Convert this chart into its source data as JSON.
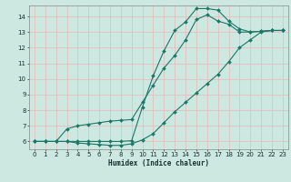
{
  "title": "",
  "xlabel": "Humidex (Indice chaleur)",
  "bg_color": "#cce8e0",
  "line_color": "#1a7868",
  "grid_color": "#f0f0f0",
  "xlim": [
    -0.5,
    23.5
  ],
  "ylim": [
    5.5,
    14.7
  ],
  "xticks": [
    0,
    1,
    2,
    3,
    4,
    5,
    6,
    7,
    8,
    9,
    10,
    11,
    12,
    13,
    14,
    15,
    16,
    17,
    18,
    19,
    20,
    21,
    22,
    23
  ],
  "yticks": [
    6,
    7,
    8,
    9,
    10,
    11,
    12,
    13,
    14
  ],
  "line1_x": [
    0,
    1,
    2,
    3,
    4,
    5,
    6,
    7,
    8,
    9,
    10,
    11,
    12,
    13,
    14,
    15,
    16,
    17,
    18,
    19,
    20,
    21,
    22,
    23
  ],
  "line1_y": [
    6.0,
    6.0,
    6.0,
    6.0,
    5.9,
    5.85,
    5.8,
    5.75,
    5.75,
    5.85,
    6.1,
    6.5,
    7.2,
    7.9,
    8.5,
    9.1,
    9.7,
    10.3,
    11.1,
    12.0,
    12.5,
    13.0,
    13.1,
    13.1
  ],
  "line2_x": [
    0,
    1,
    2,
    3,
    4,
    5,
    6,
    7,
    8,
    9,
    10,
    11,
    12,
    13,
    14,
    15,
    16,
    17,
    18,
    19,
    20,
    21,
    22,
    23
  ],
  "line2_y": [
    6.0,
    6.0,
    6.0,
    6.8,
    7.0,
    7.1,
    7.2,
    7.3,
    7.35,
    7.4,
    8.5,
    9.6,
    10.7,
    11.5,
    12.5,
    13.8,
    14.1,
    13.7,
    13.5,
    13.0,
    13.0,
    13.05,
    13.1,
    13.1
  ],
  "line3_x": [
    0,
    1,
    2,
    3,
    4,
    5,
    6,
    7,
    8,
    9,
    10,
    11,
    12,
    13,
    14,
    15,
    16,
    17,
    18,
    19,
    20,
    21,
    22,
    23
  ],
  "line3_y": [
    6.0,
    6.0,
    6.0,
    6.0,
    6.0,
    6.0,
    6.0,
    6.0,
    6.0,
    6.05,
    8.2,
    10.2,
    11.8,
    13.1,
    13.65,
    14.5,
    14.5,
    14.4,
    13.7,
    13.2,
    13.0,
    13.05,
    13.1,
    13.1
  ]
}
